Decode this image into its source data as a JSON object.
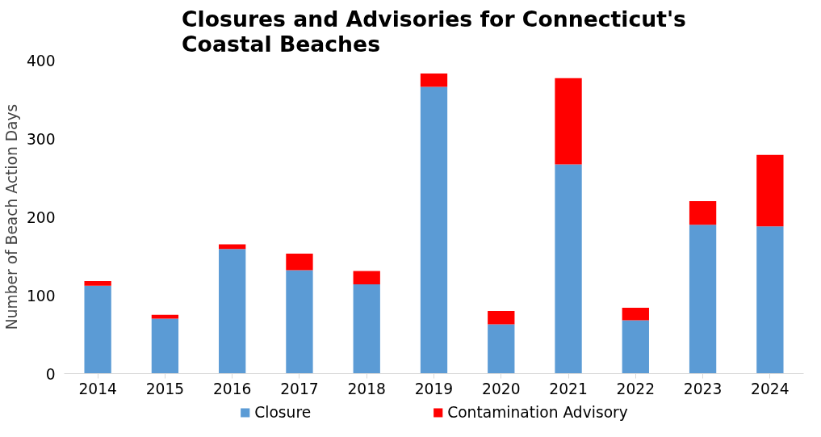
{
  "chart_data": {
    "type": "bar",
    "title": "Closures and Advisories for Connecticut's Coastal Beaches",
    "ylabel": "Number of Beach Action Days",
    "categories": [
      "2014",
      "2015",
      "2016",
      "2017",
      "2018",
      "2019",
      "2020",
      "2021",
      "2022",
      "2023",
      "2024"
    ],
    "stacked": true,
    "series": [
      {
        "name": "Closure",
        "color": "#5b9bd5",
        "values": [
          112,
          70,
          159,
          132,
          114,
          366,
          63,
          267,
          68,
          190,
          188
        ]
      },
      {
        "name": "Contamination Advisory",
        "color": "#ff0000",
        "values": [
          6,
          5,
          6,
          21,
          17,
          17,
          17,
          110,
          16,
          30,
          91
        ]
      }
    ],
    "ylim": [
      0,
      400
    ],
    "yticks": [
      0,
      100,
      200,
      300,
      400
    ],
    "grid": false,
    "legend": "bottom"
  }
}
